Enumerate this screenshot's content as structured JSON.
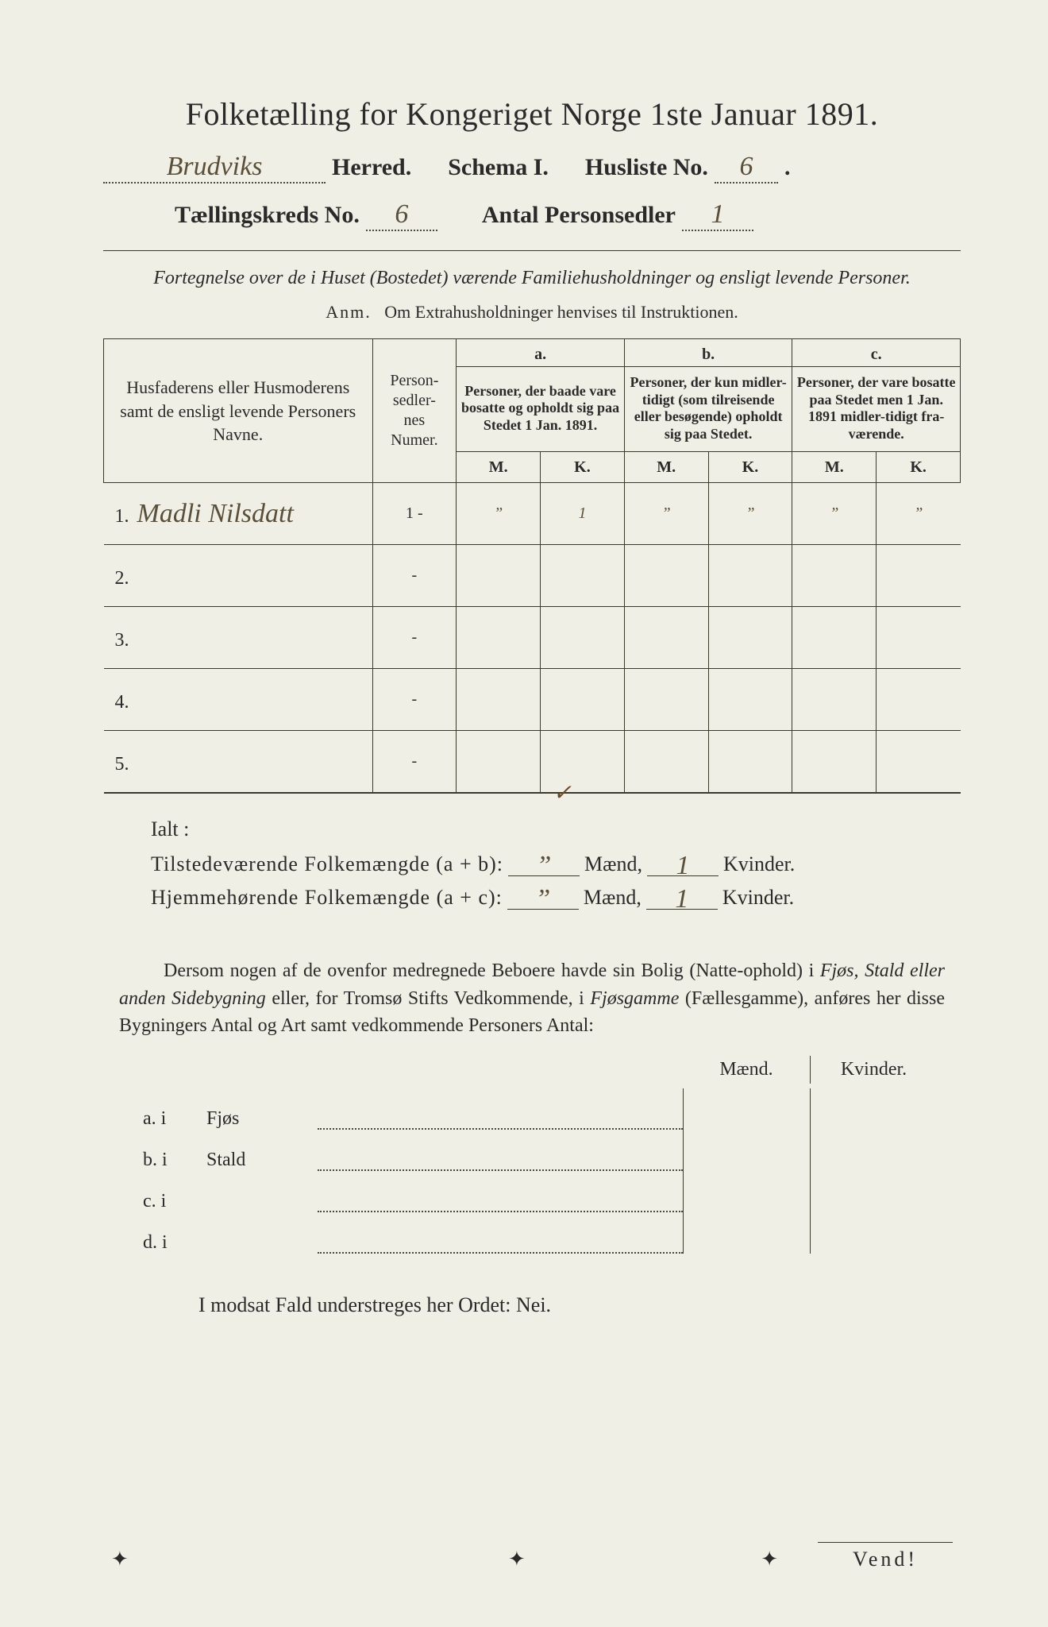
{
  "title": "Folketælling for Kongeriget Norge 1ste Januar 1891.",
  "header": {
    "herred_value": "Brudviks",
    "herred_label": "Herred.",
    "schema_label": "Schema I.",
    "husliste_label": "Husliste No.",
    "husliste_value": "6",
    "kreds_label": "Tællingskreds No.",
    "kreds_value": "6",
    "sedler_label": "Antal Personsedler",
    "sedler_value": "1"
  },
  "subtitle": "Fortegnelse over de i Huset (Bostedet) værende Familiehusholdninger og ensligt levende Personer.",
  "anm_label": "Anm.",
  "anm_text": "Om Extrahusholdninger henvises til Instruktionen.",
  "columns": {
    "names_header": "Husfaderens eller Husmoderens samt de ensligt levende Personers Navne.",
    "num_header": "Person-\nsedler-\nnes\nNumer.",
    "a_label": "a.",
    "a_text": "Personer, der baade vare bosatte og opholdt sig paa Stedet 1 Jan. 1891.",
    "b_label": "b.",
    "b_text": "Personer, der kun midler-tidigt (som tilreisende eller besøgende) opholdt sig paa Stedet.",
    "c_label": "c.",
    "c_text": "Personer, der vare bosatte paa Stedet men 1 Jan. 1891 midler-tidigt fra-værende.",
    "m": "M.",
    "k": "K."
  },
  "rows": [
    {
      "n": "1.",
      "name": "Madli Nilsdatt",
      "num": "1 -",
      "aM": "”",
      "aK": "1",
      "bM": "”",
      "bK": "”",
      "cM": "”",
      "cK": "”"
    },
    {
      "n": "2.",
      "name": "",
      "num": "-",
      "aM": "",
      "aK": "",
      "bM": "",
      "bK": "",
      "cM": "",
      "cK": ""
    },
    {
      "n": "3.",
      "name": "",
      "num": "-",
      "aM": "",
      "aK": "",
      "bM": "",
      "bK": "",
      "cM": "",
      "cK": ""
    },
    {
      "n": "4.",
      "name": "",
      "num": "-",
      "aM": "",
      "aK": "",
      "bM": "",
      "bK": "",
      "cM": "",
      "cK": ""
    },
    {
      "n": "5.",
      "name": "",
      "num": "-",
      "aM": "",
      "aK": "",
      "bM": "",
      "bK": "",
      "cM": "",
      "cK": ""
    }
  ],
  "checkmark": "✓",
  "ialt": "Ialt :",
  "totals": {
    "line1_label": "Tilstedeværende Folkemængde (a + b):",
    "line2_label": "Hjemmehørende Folkemængde (a + c):",
    "maend": "Mænd,",
    "kvinder": "Kvinder.",
    "m1": "”",
    "k1": "1",
    "m2": "”",
    "k2": "1"
  },
  "paragraph": {
    "t1": "Dersom nogen af de ovenfor medregnede Beboere havde sin Bolig (Natte-ophold) i ",
    "i1": "Fjøs, Stald eller anden Sidebygning",
    "t2": " eller, for Tromsø Stifts Vedkommende, i ",
    "i2": "Fjøsgamme",
    "t3": " (Fællesgamme), anføres her disse Bygningers Antal og Art samt vedkommende Personers Antal:"
  },
  "mk": {
    "maend": "Mænd.",
    "kvinder": "Kvinder."
  },
  "list": [
    {
      "p": "a.  i",
      "w": "Fjøs"
    },
    {
      "p": "b.  i",
      "w": "Stald"
    },
    {
      "p": "c.  i",
      "w": ""
    },
    {
      "p": "d.  i",
      "w": ""
    }
  ],
  "modsat": "I modsat Fald understreges her Ordet: Nei.",
  "vend": "Vend!",
  "colors": {
    "paper": "#f0efe5",
    "ink": "#2a2a2a",
    "line": "#3a3a2a",
    "hand": "#5a4f3a"
  }
}
